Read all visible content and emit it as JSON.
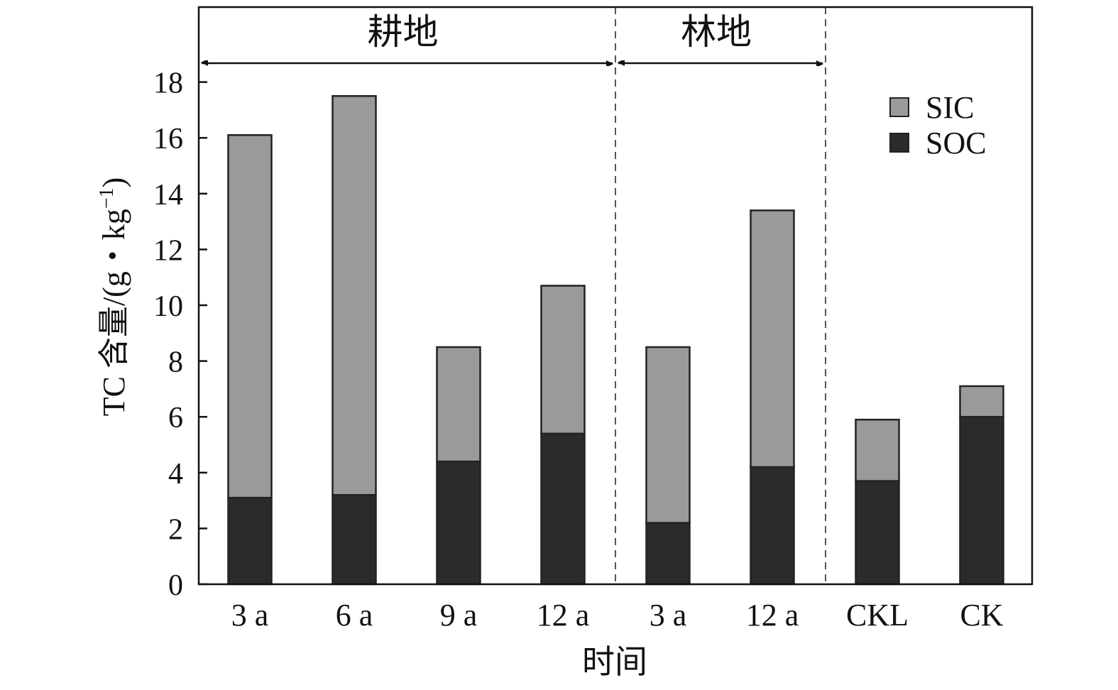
{
  "chart_data": {
    "type": "bar",
    "stacked": true,
    "xlabel": "时间",
    "ylabel_main": "TC 含量/(g・kg",
    "ylabel_sup": "−1",
    "ylabel_close": ")",
    "ylim": [
      0,
      20
    ],
    "yticks": [
      0,
      2,
      4,
      6,
      8,
      10,
      12,
      14,
      16,
      18
    ],
    "categories": [
      "3 a",
      "6 a",
      "9 a",
      "12 a",
      "3 a",
      "12 a",
      "CKL",
      "CK"
    ],
    "series": [
      {
        "name": "SOC",
        "color": "#2d2a2b",
        "values": [
          3.1,
          3.2,
          4.4,
          5.4,
          2.2,
          4.2,
          3.7,
          6.0
        ]
      },
      {
        "name": "SIC",
        "color": "#9a9a9a",
        "values": [
          13.0,
          14.3,
          4.1,
          5.3,
          6.3,
          9.2,
          2.2,
          1.1
        ]
      }
    ],
    "groups": [
      {
        "label": "耕地",
        "from": 0,
        "to": 3
      },
      {
        "label": "林地",
        "from": 4,
        "to": 5
      }
    ],
    "legend": {
      "placement": "top-right",
      "items": [
        "SIC",
        "SOC"
      ]
    },
    "grid": false
  }
}
